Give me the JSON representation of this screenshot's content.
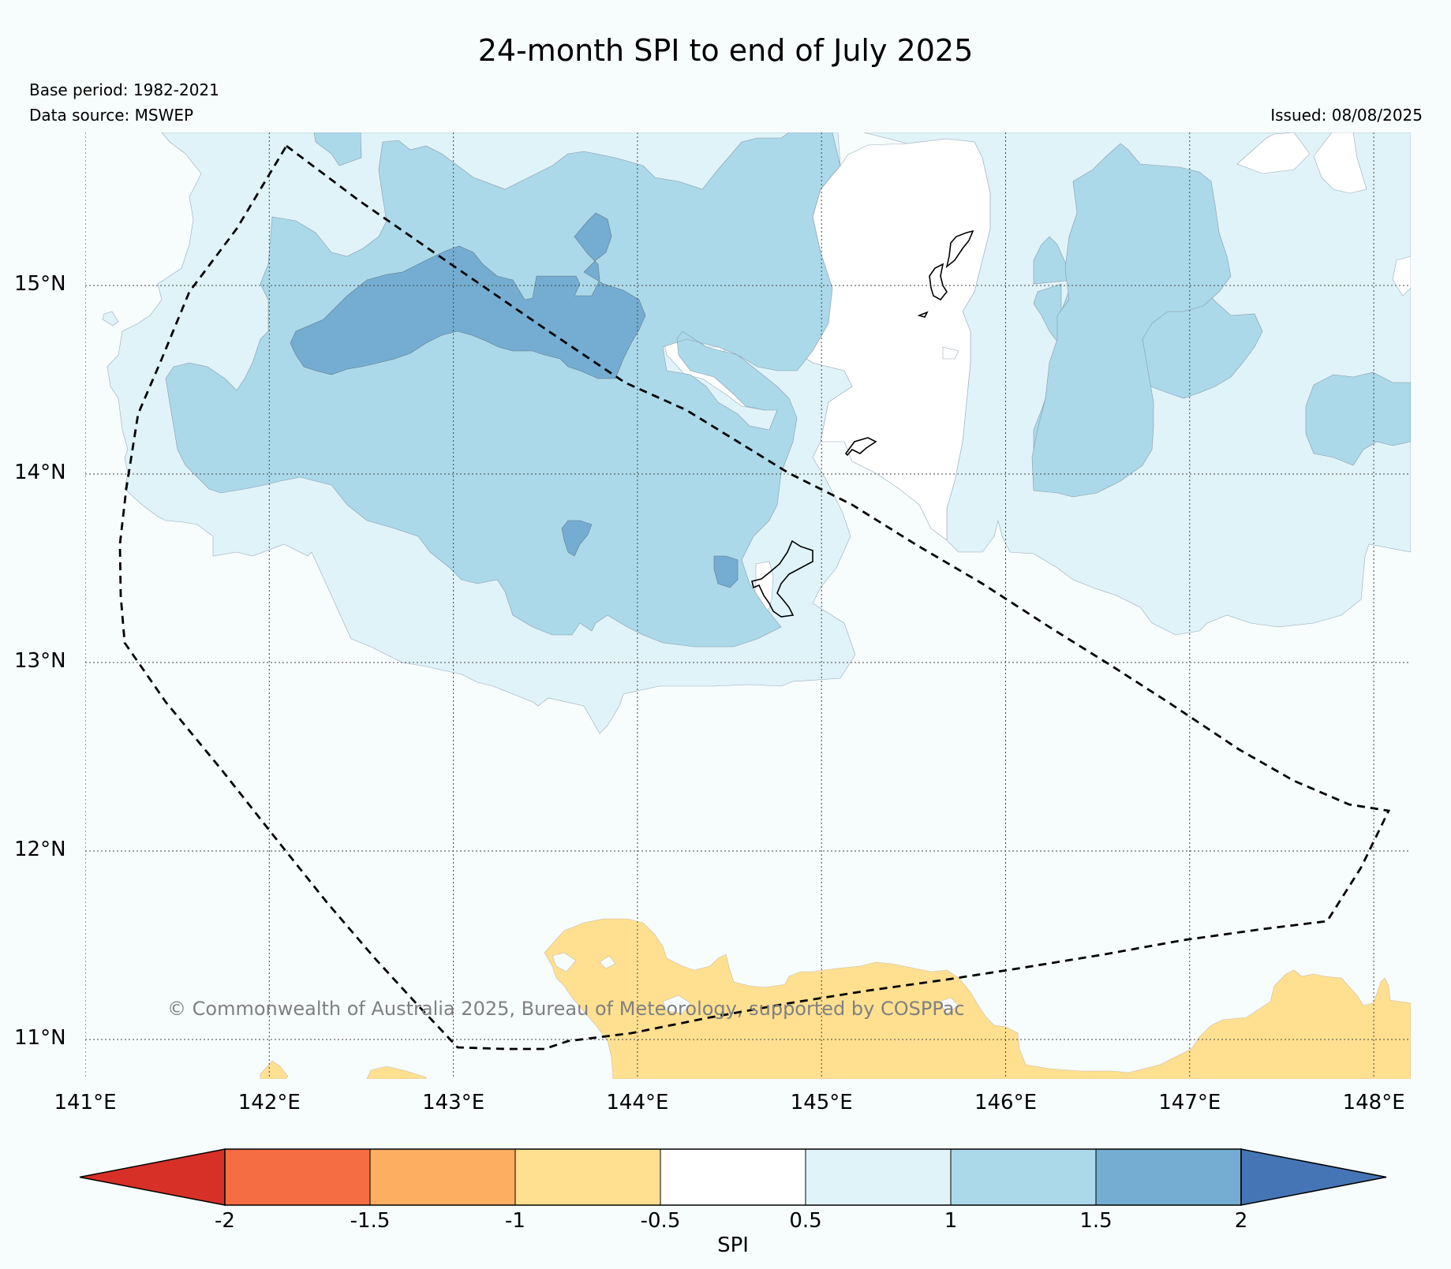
{
  "title": "24-month SPI to end of July 2025",
  "base_period": "Base period: 1982-2021",
  "data_source": "Data source: MSWEP",
  "issued": "Issued: 08/08/2025",
  "copyright": "© Commonwealth of Australia 2025, Bureau of Meteorology, supported by COSPPac",
  "map": {
    "lon_labels": [
      "141°E",
      "142°E",
      "143°E",
      "144°E",
      "145°E",
      "146°E",
      "147°E",
      "148°E"
    ],
    "lat_labels": [
      "15°N",
      "14°N",
      "13°N",
      "12°N",
      "11°N"
    ],
    "lon_range": [
      141,
      148.2
    ],
    "lat_range": [
      10.8,
      15.8
    ],
    "grid": "dotted",
    "features": [
      "eez-boundary-dashed",
      "island-coastlines"
    ]
  },
  "colorbar": {
    "title": "SPI",
    "tick_labels": [
      "-2",
      "-1.5",
      "-1",
      "-0.5",
      "0.5",
      "1",
      "1.5",
      "2"
    ],
    "bin_colors": [
      "#d73027",
      "#f46d43",
      "#fdae61",
      "#fee090",
      "#ffffff",
      "#e0f3f8",
      "#abd9e9",
      "#74add1",
      "#4575b4"
    ]
  },
  "colors": {
    "background": "#f7fcfd",
    "spi_0.5_1": "#e0f3f8",
    "spi_1_1.5": "#abd9e9",
    "spi_1.5_2": "#74add1",
    "spi_-1_-0.5": "#fee090",
    "spi_-0.5_0.5": "#ffffff"
  }
}
